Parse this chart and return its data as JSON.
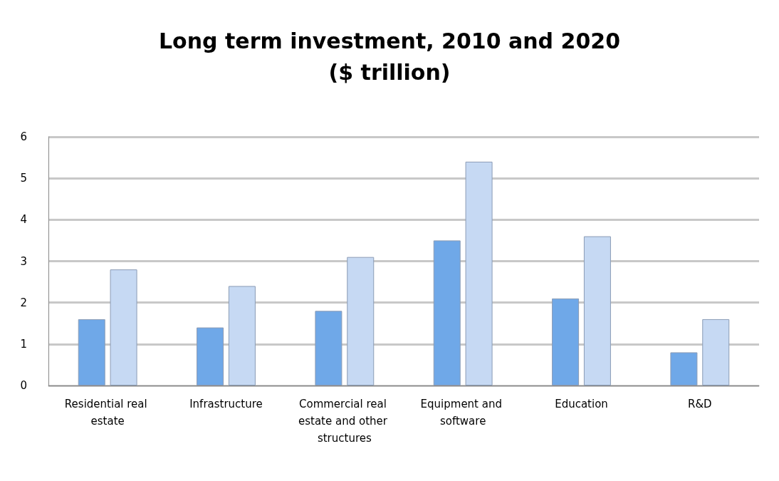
{
  "chart_data": {
    "type": "bar",
    "title": "Long term investment, 2010 and 2020\n($ trillion)",
    "categories": [
      "Residential real estate",
      "Infrastructure",
      "Commercial real estate and other structures",
      "Equipment and software",
      "Education",
      "R&D"
    ],
    "series": [
      {
        "color": "#6fa8e8",
        "values": [
          1.6,
          1.4,
          1.8,
          3.5,
          2.1,
          0.8
        ]
      },
      {
        "color": "#c6d9f3",
        "values": [
          2.8,
          2.4,
          3.1,
          5.4,
          3.6,
          1.6
        ]
      }
    ],
    "ylim": [
      0,
      6
    ],
    "yticks": [
      0,
      1,
      2,
      3,
      4,
      5,
      6
    ],
    "grid": "y"
  }
}
